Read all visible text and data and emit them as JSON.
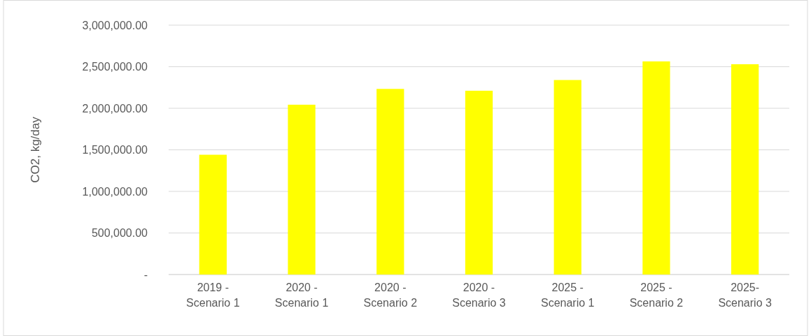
{
  "chart_data": {
    "type": "bar",
    "ylabel": "CO2, kg/day",
    "categories": [
      "2019 - Scenario 1",
      "2020 - Scenario 1",
      "2020 - Scenario 2",
      "2020 - Scenario 3",
      "2025 - Scenario 1",
      "2025 - Scenario 2",
      "2025- Scenario 3"
    ],
    "values": [
      1441000,
      2043000,
      2233000,
      2211000,
      2340000,
      2564000,
      2530000
    ],
    "color": "#ffff00",
    "ylim": [
      0,
      3000000
    ],
    "yticks": [
      {
        "value": 0,
        "label": "-"
      },
      {
        "value": 500000,
        "label": "500,000.00"
      },
      {
        "value": 1000000,
        "label": "1,000,000.00"
      },
      {
        "value": 1500000,
        "label": "1,500,000.00"
      },
      {
        "value": 2000000,
        "label": "2,000,000.00"
      },
      {
        "value": 2500000,
        "label": "2,500,000.00"
      },
      {
        "value": 3000000,
        "label": "3,000,000.00"
      }
    ],
    "grid": "y"
  }
}
